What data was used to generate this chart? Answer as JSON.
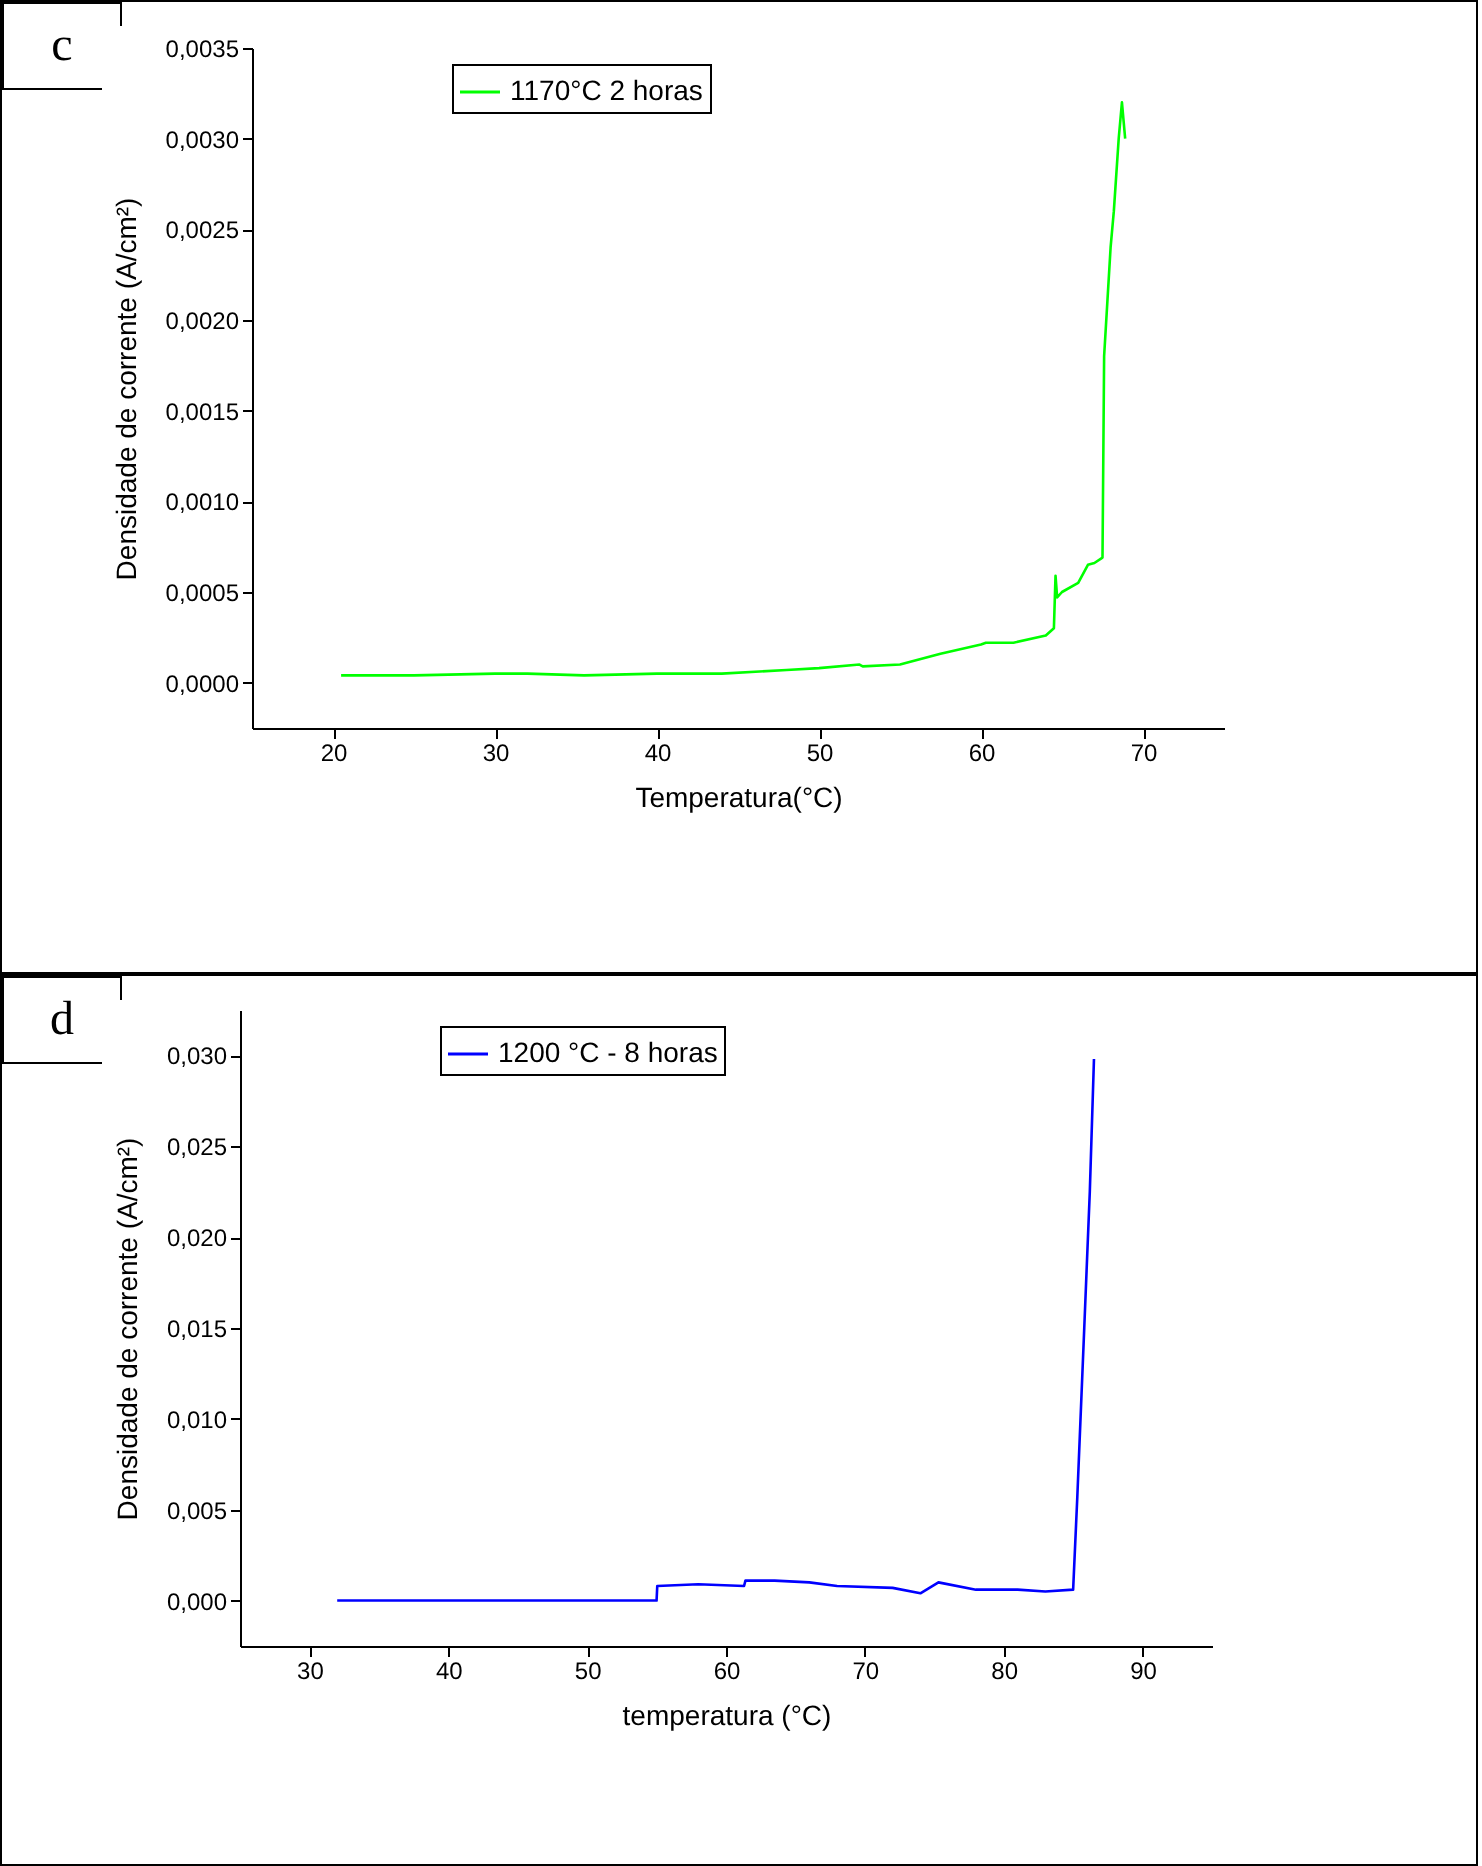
{
  "chart_data": [
    {
      "type": "line",
      "annotations": [
        "c"
      ],
      "xlabel": "Temperatura(°C)",
      "ylabel": "Densidade de corrente (A/cm²)",
      "xlim": [
        15,
        75
      ],
      "ylim": [
        -0.00025,
        0.0035
      ],
      "xticks": [
        20,
        30,
        40,
        50,
        60,
        70
      ],
      "yticks": [
        {
          "value": 0,
          "label": "0,0000"
        },
        {
          "value": 0.0005,
          "label": "0,0005"
        },
        {
          "value": 0.001,
          "label": "0,0010"
        },
        {
          "value": 0.0015,
          "label": "0,0015"
        },
        {
          "value": 0.002,
          "label": "0,0020"
        },
        {
          "value": 0.0025,
          "label": "0,0025"
        },
        {
          "value": 0.003,
          "label": "0,0030"
        },
        {
          "value": 0.0035,
          "label": "0,0035"
        }
      ],
      "legend": "top left",
      "series": [
        {
          "name": "1170°C 2 horas",
          "color": "#00ff00",
          "x": [
            20.5,
            25,
            30,
            32,
            35.5,
            40,
            44,
            48,
            50,
            52.5,
            52.7,
            55,
            57.5,
            60,
            60.3,
            62,
            64,
            64.5,
            64.6,
            64.7,
            65,
            66,
            66.6,
            67,
            67.5,
            67.6,
            67.8,
            68,
            68.2,
            68.5,
            68.7,
            68.8,
            68.9
          ],
          "values": [
            4e-05,
            4e-05,
            5e-05,
            5e-05,
            4e-05,
            5e-05,
            5e-05,
            7e-05,
            8e-05,
            0.0001,
            9e-05,
            0.0001,
            0.00016,
            0.00021,
            0.00022,
            0.00022,
            0.00026,
            0.0003,
            0.00059,
            0.00047,
            0.0005,
            0.00055,
            0.00065,
            0.00066,
            0.00069,
            0.0018,
            0.0021,
            0.0024,
            0.0026,
            0.003,
            0.0032,
            0.0031,
            0.003
          ]
        }
      ]
    },
    {
      "type": "line",
      "annotations": [
        "d"
      ],
      "xlabel": "temperatura (°C)",
      "ylabel": "Densidade de corrente (A/cm²)",
      "xlim": [
        25,
        95
      ],
      "ylim": [
        -0.0025,
        0.0325
      ],
      "xticks": [
        30,
        40,
        50,
        60,
        70,
        80,
        90
      ],
      "yticks": [
        {
          "value": 0,
          "label": "0,000"
        },
        {
          "value": 0.005,
          "label": "0,005"
        },
        {
          "value": 0.01,
          "label": "0,010"
        },
        {
          "value": 0.015,
          "label": "0,015"
        },
        {
          "value": 0.02,
          "label": "0,020"
        },
        {
          "value": 0.025,
          "label": "0,025"
        },
        {
          "value": 0.03,
          "label": "0,030"
        }
      ],
      "legend": "top left",
      "series": [
        {
          "name": "1200 °C - 8 horas",
          "color": "#0000ff",
          "x": [
            32,
            55,
            55.05,
            58,
            61.3,
            61.4,
            63.5,
            66,
            68,
            72,
            74,
            75.3,
            78,
            81,
            83,
            85,
            85.3,
            85.8,
            86.2,
            86.5
          ],
          "values": [
            0,
            0,
            0.0008,
            0.0009,
            0.0008,
            0.0011,
            0.0011,
            0.001,
            0.0008,
            0.0007,
            0.0004,
            0.001,
            0.0006,
            0.0006,
            0.0005,
            0.0006,
            0.0057,
            0.015,
            0.0225,
            0.0298
          ]
        }
      ]
    }
  ]
}
